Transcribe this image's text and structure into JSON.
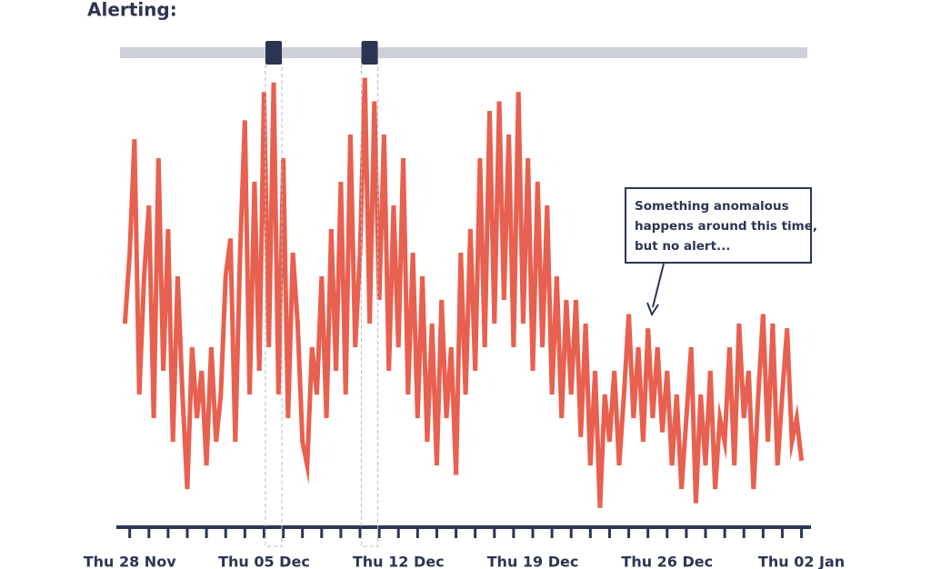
{
  "chart_data": {
    "type": "line",
    "title": "Alerting:",
    "annotation": [
      "Something anomalous",
      "happens around this time,",
      "but no alert..."
    ],
    "xlim": [
      -0.6,
      35.4
    ],
    "ylim": [
      0,
      100
    ],
    "xticks": [
      {
        "value": 0,
        "label": "Thu 28 Nov"
      },
      {
        "value": 7,
        "label": "Thu 05 Dec"
      },
      {
        "value": 14,
        "label": "Thu 12 Dec"
      },
      {
        "value": 21,
        "label": "Thu 19 Dec"
      },
      {
        "value": 28,
        "label": "Thu 26 Dec"
      },
      {
        "value": 35,
        "label": "Thu 02 Jan"
      }
    ],
    "xminorticks": [
      0,
      1,
      2,
      3,
      4,
      5,
      6,
      7,
      8,
      9,
      10,
      11,
      12,
      13,
      14,
      15,
      16,
      17,
      18,
      19,
      20,
      21,
      22,
      23,
      24,
      25,
      26,
      27,
      28,
      29,
      30,
      31,
      32,
      33,
      34,
      35
    ],
    "alerts": [
      7.5,
      12.5
    ],
    "series": [
      {
        "color": "#e8604f",
        "x": [
          -0.25,
          0,
          0.25,
          0.5,
          0.75,
          1,
          1.25,
          1.5,
          1.75,
          2,
          2.25,
          2.5,
          2.75,
          3,
          3.25,
          3.5,
          3.75,
          4,
          4.25,
          4.5,
          4.75,
          5,
          5.25,
          5.5,
          5.75,
          6,
          6.25,
          6.5,
          6.75,
          7,
          7.25,
          7.5,
          7.75,
          8,
          8.25,
          8.5,
          8.75,
          9,
          9.25,
          9.5,
          9.75,
          10,
          10.25,
          10.5,
          10.75,
          11,
          11.25,
          11.5,
          11.75,
          12,
          12.25,
          12.5,
          12.75,
          13,
          13.25,
          13.5,
          13.75,
          14,
          14.25,
          14.5,
          14.75,
          15,
          15.25,
          15.5,
          15.75,
          16,
          16.25,
          16.5,
          16.75,
          17,
          17.25,
          17.5,
          17.75,
          18,
          18.25,
          18.5,
          18.75,
          19,
          19.25,
          19.5,
          19.75,
          20,
          20.25,
          20.5,
          20.75,
          21,
          21.25,
          21.5,
          21.75,
          22,
          22.25,
          22.5,
          22.75,
          23,
          23.25,
          23.5,
          23.75,
          24,
          24.25,
          24.5,
          24.75,
          25,
          25.25,
          25.5,
          25.75,
          26,
          26.25,
          26.5,
          26.75,
          27,
          27.25,
          27.5,
          27.75,
          28,
          28.25,
          28.5,
          28.75,
          29,
          29.25,
          29.5,
          29.75,
          30,
          30.25,
          30.5,
          30.75,
          31,
          31.25,
          31.5,
          31.75,
          32,
          32.25,
          32.5,
          32.75,
          33,
          33.25,
          33.5,
          33.75,
          34,
          34.25,
          34.5,
          34.75,
          35
        ],
        "values": [
          45,
          60,
          84,
          30,
          55,
          70,
          25,
          80,
          35,
          65,
          20,
          55,
          30,
          10,
          40,
          25,
          35,
          15,
          40,
          20,
          30,
          55,
          63,
          20,
          60,
          88,
          30,
          75,
          35,
          94,
          40,
          96,
          30,
          80,
          25,
          60,
          45,
          20,
          15,
          40,
          30,
          55,
          25,
          65,
          35,
          75,
          30,
          85,
          40,
          60,
          97,
          45,
          92,
          50,
          85,
          35,
          70,
          40,
          80,
          30,
          60,
          25,
          55,
          20,
          45,
          15,
          50,
          25,
          40,
          13,
          60,
          30,
          65,
          35,
          80,
          40,
          90,
          45,
          92,
          50,
          85,
          40,
          94,
          45,
          80,
          35,
          75,
          40,
          70,
          30,
          55,
          25,
          50,
          30,
          50,
          21,
          45,
          15,
          35,
          6,
          30,
          20,
          35,
          15,
          30,
          47,
          25,
          40,
          20,
          44,
          25,
          40,
          22,
          35,
          15,
          30,
          10,
          25,
          40,
          7,
          30,
          15,
          35,
          10,
          25,
          20,
          40,
          15,
          45,
          25,
          35,
          10,
          30,
          47,
          20,
          45,
          15,
          30,
          44,
          20,
          25,
          16
        ]
      }
    ]
  }
}
